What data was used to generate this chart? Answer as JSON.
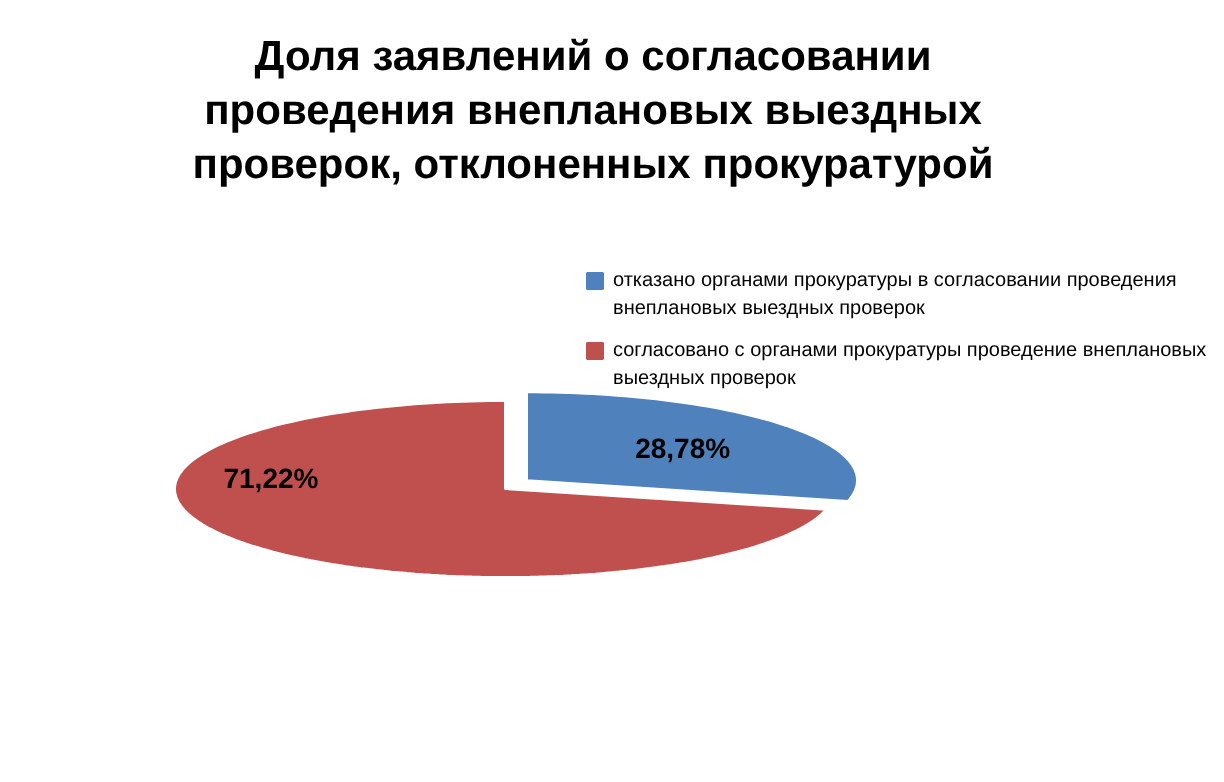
{
  "chart_data": {
    "type": "pie",
    "title": "Доля заявлений о согласовании проведения внеплановых выездных проверок, отклоненных прокуратурой",
    "categories": [
      "отказано органами прокуратуры в согласовании проведения внеплановых выездных проверок",
      "согласовано с органами прокуратуры проведение внеплановых выездных проверок"
    ],
    "values": [
      28.78,
      71.22
    ],
    "value_labels": [
      "28,78%",
      "71,22%"
    ],
    "colors": [
      "#4f81bd",
      "#c0504d"
    ],
    "legend": "top right"
  }
}
